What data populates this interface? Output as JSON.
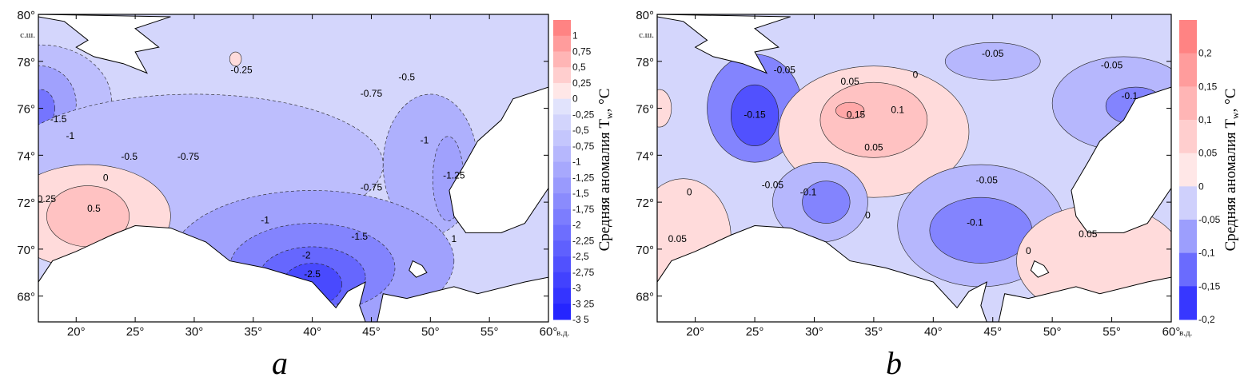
{
  "chart_data": [
    {
      "type": "heatmap",
      "panel_label": "a",
      "x_ticks": [
        "20°",
        "25°",
        "30°",
        "35°",
        "40°",
        "45°",
        "50°",
        "55°",
        "60°"
      ],
      "x_unit": "в.д.",
      "y_ticks": [
        "68°",
        "70°",
        "72°",
        "74°",
        "76°",
        "78°",
        "80°"
      ],
      "y_unit": "с.ш.",
      "xlim": [
        16.8,
        60
      ],
      "ylim": [
        66.9,
        80
      ],
      "colorbar_title": "Средняя аномалия T",
      "colorbar_subscript": "w",
      "colorbar_unit": ", °C",
      "colorbar_labels": [
        "1",
        "0,75",
        "0,5",
        "0,25",
        "0",
        "-0,25",
        "-0,5",
        "-0,75",
        "-1",
        "-1,25",
        "-1,5",
        "-1,75",
        "-2",
        "-2,25",
        "-2,5",
        "-2,75",
        "-3",
        "-3 25",
        "-3 5"
      ],
      "colorbar_range": [
        -3.5,
        1.25
      ],
      "contour_labels": [
        {
          "text": "-1.5",
          "lon": 18.5,
          "lat": 75.4
        },
        {
          "text": "-1",
          "lon": 19.5,
          "lat": 74.7
        },
        {
          "text": "0.25",
          "lon": 17.5,
          "lat": 72.0
        },
        {
          "text": "0.5",
          "lon": 21.5,
          "lat": 71.6
        },
        {
          "text": "0",
          "lon": 22.5,
          "lat": 72.9
        },
        {
          "text": "-0.5",
          "lon": 24.5,
          "lat": 73.8
        },
        {
          "text": "-0.75",
          "lon": 29.5,
          "lat": 73.8
        },
        {
          "text": "-0.25",
          "lon": 34,
          "lat": 77.5
        },
        {
          "text": "-0.75",
          "lon": 45,
          "lat": 76.5
        },
        {
          "text": "-0.5",
          "lon": 48,
          "lat": 77.2
        },
        {
          "text": "-1",
          "lon": 49.5,
          "lat": 74.5
        },
        {
          "text": "-1.25",
          "lon": 52,
          "lat": 73.0
        },
        {
          "text": "-0.75",
          "lon": 45,
          "lat": 72.5
        },
        {
          "text": "-1",
          "lon": 36,
          "lat": 71.1
        },
        {
          "text": "-1.5",
          "lon": 44,
          "lat": 70.4
        },
        {
          "text": "-2",
          "lon": 39.5,
          "lat": 69.6
        },
        {
          "text": "-2.5",
          "lon": 40,
          "lat": 68.8
        },
        {
          "text": "1",
          "lon": 52,
          "lat": 70.3
        }
      ]
    },
    {
      "type": "heatmap",
      "panel_label": "b",
      "x_ticks": [
        "20°",
        "25°",
        "30°",
        "35°",
        "40°",
        "45°",
        "50°",
        "55°",
        "60°"
      ],
      "x_unit": "в.д.",
      "y_ticks": [
        "68°",
        "70°",
        "72°",
        "74°",
        "76°",
        "78°",
        "80°"
      ],
      "y_unit": "с.ш.",
      "xlim": [
        16.8,
        60
      ],
      "ylim": [
        66.9,
        80
      ],
      "colorbar_title": "Средняя аномалия T",
      "colorbar_subscript": "w",
      "colorbar_unit": ", °C",
      "colorbar_labels": [
        "0,2",
        "0,15",
        "0,1",
        "0,05",
        "0",
        "-0,05",
        "-0,1",
        "-0,15",
        "-0,2"
      ],
      "colorbar_range": [
        -0.2,
        0.25
      ],
      "contour_labels": [
        {
          "text": "-0.05",
          "lon": 27.5,
          "lat": 77.5
        },
        {
          "text": "-0.15",
          "lon": 25,
          "lat": 75.6
        },
        {
          "text": "0.05",
          "lon": 33,
          "lat": 77.0
        },
        {
          "text": "0",
          "lon": 38.5,
          "lat": 77.3
        },
        {
          "text": "0.15",
          "lon": 33.5,
          "lat": 75.6
        },
        {
          "text": "0.1",
          "lon": 37,
          "lat": 75.8
        },
        {
          "text": "0.05",
          "lon": 35,
          "lat": 74.2
        },
        {
          "text": "-0.05",
          "lon": 45,
          "lat": 78.2
        },
        {
          "text": "-0.05",
          "lon": 55,
          "lat": 77.7
        },
        {
          "text": "-0.1",
          "lon": 56.5,
          "lat": 76.4
        },
        {
          "text": "-0.05",
          "lon": 26.5,
          "lat": 72.6
        },
        {
          "text": "-0.1",
          "lon": 29.5,
          "lat": 72.3
        },
        {
          "text": "0",
          "lon": 19.5,
          "lat": 72.3
        },
        {
          "text": "-0.05",
          "lon": 44.5,
          "lat": 72.8
        },
        {
          "text": "-0.1",
          "lon": 43.5,
          "lat": 71.0
        },
        {
          "text": "0",
          "lon": 34.5,
          "lat": 71.3
        },
        {
          "text": "0.05",
          "lon": 18.5,
          "lat": 70.3
        },
        {
          "text": "0",
          "lon": 48,
          "lat": 69.8
        },
        {
          "text": "0.05",
          "lon": 53,
          "lat": 70.5
        }
      ]
    }
  ]
}
